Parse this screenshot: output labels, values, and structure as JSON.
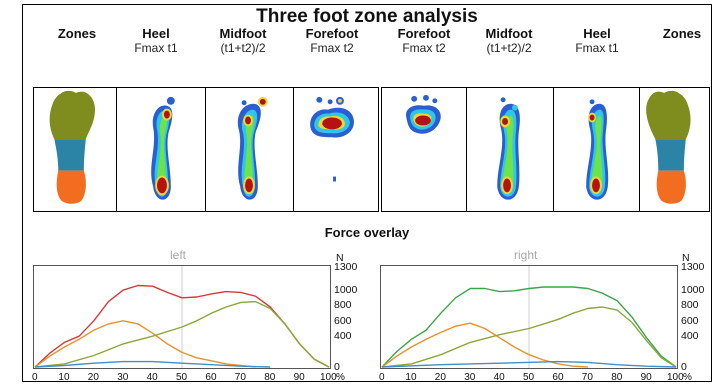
{
  "title": "Three foot zone analysis",
  "columns": [
    {
      "main": "Zones",
      "sub": ""
    },
    {
      "main": "Heel",
      "sub": "Fmax t1"
    },
    {
      "main": "Midfoot",
      "sub": "(t1+t2)/2"
    },
    {
      "main": "Forefoot",
      "sub": "Fmax t2"
    },
    {
      "main": "Forefoot",
      "sub": "Fmax t2"
    },
    {
      "main": "Midfoot",
      "sub": "(t1+t2)/2"
    },
    {
      "main": "Heel",
      "sub": "Fmax t1"
    },
    {
      "main": "Zones",
      "sub": ""
    }
  ],
  "zone_colors": {
    "forefoot": "#7f8c1e",
    "midfoot": "#2b84a6",
    "heel": "#f26d1f"
  },
  "force_overlay": {
    "title": "Force overlay",
    "unit": "N",
    "y_ticks": [
      "1300",
      "1000",
      "800",
      "600",
      "400",
      "0"
    ],
    "x_ticks": [
      "0",
      "10",
      "20",
      "30",
      "40",
      "50",
      "60",
      "70",
      "80",
      "90",
      "100"
    ],
    "x_unit": "%",
    "charts": [
      {
        "label": "left",
        "series": [
          {
            "color": "#d43a3a",
            "points": [
              [
                0,
                0
              ],
              [
                5,
                180
              ],
              [
                10,
                320
              ],
              [
                15,
                400
              ],
              [
                20,
                600
              ],
              [
                25,
                850
              ],
              [
                30,
                1000
              ],
              [
                35,
                1060
              ],
              [
                40,
                1050
              ],
              [
                45,
                970
              ],
              [
                50,
                900
              ],
              [
                55,
                910
              ],
              [
                60,
                950
              ],
              [
                65,
                980
              ],
              [
                70,
                970
              ],
              [
                75,
                920
              ],
              [
                80,
                780
              ],
              [
                85,
                560
              ],
              [
                90,
                300
              ],
              [
                95,
                100
              ],
              [
                100,
                0
              ]
            ]
          },
          {
            "color": "#e8922d",
            "points": [
              [
                0,
                0
              ],
              [
                5,
                140
              ],
              [
                10,
                260
              ],
              [
                15,
                360
              ],
              [
                20,
                480
              ],
              [
                25,
                560
              ],
              [
                30,
                600
              ],
              [
                35,
                560
              ],
              [
                40,
                440
              ],
              [
                45,
                300
              ],
              [
                50,
                190
              ],
              [
                55,
                120
              ],
              [
                60,
                80
              ],
              [
                65,
                40
              ],
              [
                70,
                20
              ],
              [
                75,
                0
              ]
            ]
          },
          {
            "color": "#8aa83a",
            "points": [
              [
                0,
                0
              ],
              [
                10,
                40
              ],
              [
                20,
                150
              ],
              [
                30,
                300
              ],
              [
                40,
                400
              ],
              [
                50,
                520
              ],
              [
                55,
                600
              ],
              [
                60,
                700
              ],
              [
                65,
                780
              ],
              [
                70,
                840
              ],
              [
                75,
                850
              ],
              [
                80,
                760
              ],
              [
                85,
                560
              ],
              [
                90,
                300
              ],
              [
                95,
                100
              ],
              [
                100,
                0
              ]
            ]
          },
          {
            "color": "#3f8fc9",
            "points": [
              [
                0,
                0
              ],
              [
                10,
                20
              ],
              [
                20,
                50
              ],
              [
                30,
                70
              ],
              [
                40,
                70
              ],
              [
                50,
                50
              ],
              [
                60,
                30
              ],
              [
                70,
                10
              ],
              [
                80,
                0
              ]
            ]
          }
        ]
      },
      {
        "label": "right",
        "series": [
          {
            "color": "#3aa64a",
            "points": [
              [
                0,
                0
              ],
              [
                5,
                200
              ],
              [
                10,
                360
              ],
              [
                15,
                480
              ],
              [
                20,
                700
              ],
              [
                25,
                900
              ],
              [
                30,
                1020
              ],
              [
                35,
                1020
              ],
              [
                40,
                980
              ],
              [
                45,
                990
              ],
              [
                50,
                1020
              ],
              [
                55,
                1040
              ],
              [
                60,
                1040
              ],
              [
                65,
                1040
              ],
              [
                70,
                1020
              ],
              [
                75,
                960
              ],
              [
                80,
                860
              ],
              [
                85,
                650
              ],
              [
                90,
                380
              ],
              [
                95,
                140
              ],
              [
                100,
                0
              ]
            ]
          },
          {
            "color": "#e8922d",
            "points": [
              [
                0,
                0
              ],
              [
                5,
                140
              ],
              [
                10,
                260
              ],
              [
                15,
                360
              ],
              [
                20,
                450
              ],
              [
                25,
                530
              ],
              [
                30,
                570
              ],
              [
                35,
                500
              ],
              [
                40,
                380
              ],
              [
                45,
                260
              ],
              [
                50,
                160
              ],
              [
                55,
                90
              ],
              [
                60,
                40
              ],
              [
                65,
                10
              ],
              [
                70,
                0
              ]
            ]
          },
          {
            "color": "#8aa83a",
            "points": [
              [
                0,
                0
              ],
              [
                10,
                40
              ],
              [
                20,
                160
              ],
              [
                30,
                320
              ],
              [
                40,
                420
              ],
              [
                50,
                500
              ],
              [
                55,
                560
              ],
              [
                60,
                620
              ],
              [
                65,
                700
              ],
              [
                70,
                760
              ],
              [
                75,
                780
              ],
              [
                80,
                740
              ],
              [
                85,
                580
              ],
              [
                90,
                340
              ],
              [
                95,
                120
              ],
              [
                100,
                0
              ]
            ]
          },
          {
            "color": "#3f8fc9",
            "points": [
              [
                0,
                0
              ],
              [
                20,
                30
              ],
              [
                40,
                50
              ],
              [
                60,
                70
              ],
              [
                70,
                60
              ],
              [
                80,
                30
              ],
              [
                90,
                10
              ],
              [
                100,
                0
              ]
            ]
          }
        ]
      }
    ]
  }
}
